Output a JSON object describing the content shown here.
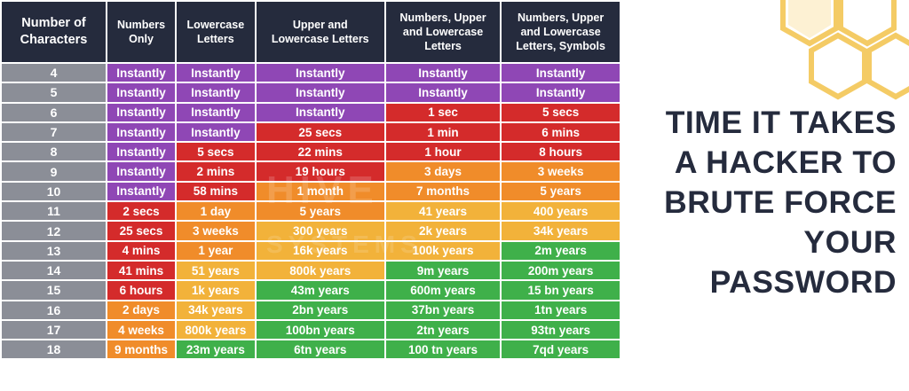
{
  "chart_data": {
    "type": "table",
    "title_lines": [
      "TIME IT TAKES",
      "A HACKER TO",
      "BRUTE FORCE",
      "YOUR",
      "PASSWORD"
    ],
    "columns": [
      [
        "Number of",
        "Characters"
      ],
      [
        "Numbers",
        "Only"
      ],
      [
        "Lowercase",
        "Letters"
      ],
      [
        "Upper and",
        "Lowercase Letters"
      ],
      [
        "Numbers, Upper",
        "and Lowercase",
        "Letters"
      ],
      [
        "Numbers, Upper",
        "and Lowercase",
        "Letters, Symbols"
      ]
    ],
    "rows": [
      {
        "chars": "4",
        "values": [
          "Instantly",
          "Instantly",
          "Instantly",
          "Instantly",
          "Instantly"
        ],
        "colors": [
          "purple",
          "purple",
          "purple",
          "purple",
          "purple"
        ]
      },
      {
        "chars": "5",
        "values": [
          "Instantly",
          "Instantly",
          "Instantly",
          "Instantly",
          "Instantly"
        ],
        "colors": [
          "purple",
          "purple",
          "purple",
          "purple",
          "purple"
        ]
      },
      {
        "chars": "6",
        "values": [
          "Instantly",
          "Instantly",
          "Instantly",
          "1 sec",
          "5 secs"
        ],
        "colors": [
          "purple",
          "purple",
          "purple",
          "red",
          "red"
        ]
      },
      {
        "chars": "7",
        "values": [
          "Instantly",
          "Instantly",
          "25 secs",
          "1 min",
          "6 mins"
        ],
        "colors": [
          "purple",
          "purple",
          "red",
          "red",
          "red"
        ]
      },
      {
        "chars": "8",
        "values": [
          "Instantly",
          "5 secs",
          "22 mins",
          "1 hour",
          "8 hours"
        ],
        "colors": [
          "purple",
          "red",
          "red",
          "red",
          "red"
        ]
      },
      {
        "chars": "9",
        "values": [
          "Instantly",
          "2 mins",
          "19 hours",
          "3 days",
          "3 weeks"
        ],
        "colors": [
          "purple",
          "red",
          "red",
          "orange",
          "orange"
        ]
      },
      {
        "chars": "10",
        "values": [
          "Instantly",
          "58 mins",
          "1 month",
          "7 months",
          "5 years"
        ],
        "colors": [
          "purple",
          "red",
          "orange",
          "orange",
          "orange"
        ]
      },
      {
        "chars": "11",
        "values": [
          "2 secs",
          "1 day",
          "5 years",
          "41 years",
          "400 years"
        ],
        "colors": [
          "red",
          "orange",
          "orange",
          "yellow",
          "yellow"
        ]
      },
      {
        "chars": "12",
        "values": [
          "25 secs",
          "3 weeks",
          "300 years",
          "2k years",
          "34k years"
        ],
        "colors": [
          "red",
          "orange",
          "yellow",
          "yellow",
          "yellow"
        ]
      },
      {
        "chars": "13",
        "values": [
          "4 mins",
          "1 year",
          "16k years",
          "100k years",
          "2m years"
        ],
        "colors": [
          "red",
          "orange",
          "yellow",
          "yellow",
          "green"
        ]
      },
      {
        "chars": "14",
        "values": [
          "41 mins",
          "51 years",
          "800k years",
          "9m years",
          "200m years"
        ],
        "colors": [
          "red",
          "yellow",
          "yellow",
          "green",
          "green"
        ]
      },
      {
        "chars": "15",
        "values": [
          "6 hours",
          "1k years",
          "43m years",
          "600m years",
          "15 bn years"
        ],
        "colors": [
          "red",
          "yellow",
          "green",
          "green",
          "green"
        ]
      },
      {
        "chars": "16",
        "values": [
          "2 days",
          "34k years",
          "2bn years",
          "37bn years",
          "1tn years"
        ],
        "colors": [
          "orange",
          "yellow",
          "green",
          "green",
          "green"
        ]
      },
      {
        "chars": "17",
        "values": [
          "4 weeks",
          "800k years",
          "100bn years",
          "2tn years",
          "93tn years"
        ],
        "colors": [
          "orange",
          "yellow",
          "green",
          "green",
          "green"
        ]
      },
      {
        "chars": "18",
        "values": [
          "9 months",
          "23m years",
          "6tn years",
          "100 tn years",
          "7qd years"
        ],
        "colors": [
          "orange",
          "green",
          "green",
          "green",
          "green"
        ]
      }
    ],
    "color_map": {
      "purple": "#8f47b5",
      "red": "#d42b2b",
      "orange": "#f08c2a",
      "yellow": "#f2b23a",
      "green": "#3fb04a"
    }
  },
  "watermark": {
    "line1": "HIVE",
    "line2": "SYSTEMS"
  }
}
